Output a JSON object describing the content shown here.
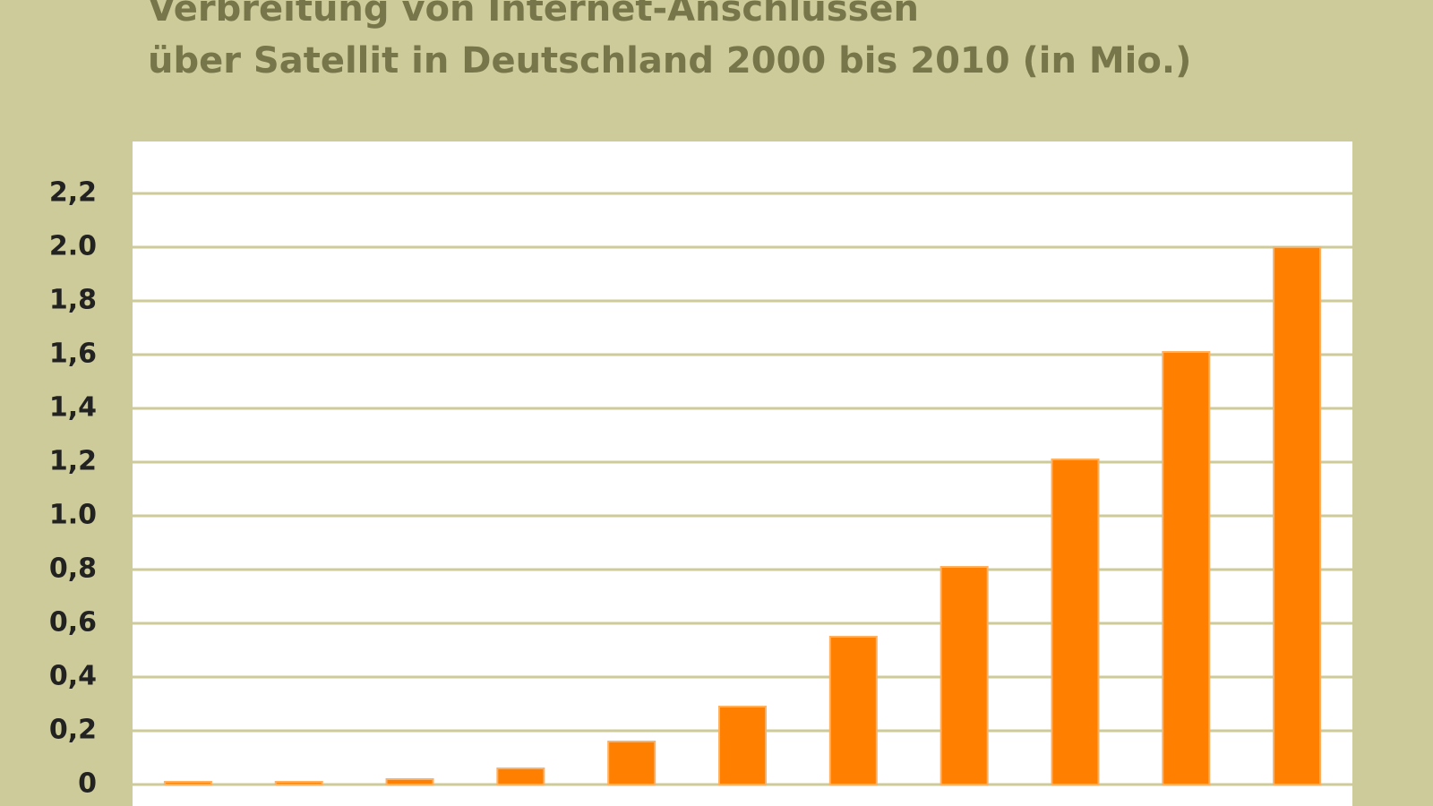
{
  "chart_data": {
    "type": "bar",
    "title_lines": [
      "Verbreitung von Internet-Anschlüssen",
      "über Satellit in Deutschland 2000 bis 2010 (in Mio.)"
    ],
    "categories": [
      null,
      null,
      null,
      null,
      null,
      null,
      null,
      null,
      null,
      null,
      null
    ],
    "values": [
      0.01,
      0.01,
      0.02,
      0.06,
      0.16,
      0.29,
      0.55,
      0.81,
      1.21,
      1.61,
      2.0
    ],
    "color": "#ff8000",
    "ylim": [
      0,
      2.4
    ],
    "yticks": [
      0,
      {
        "value": 0.2,
        "label": "0,2"
      },
      {
        "value": 0.4,
        "label": "0,4"
      },
      {
        "value": 0.6,
        "label": "0,6"
      },
      {
        "value": 0.8,
        "label": "0,8"
      },
      {
        "value": 1.0,
        "label": "1.0"
      },
      {
        "value": 1.2,
        "label": "1,2"
      },
      {
        "value": 1.4,
        "label": "1,4"
      },
      {
        "value": 1.6,
        "label": "1,6"
      },
      {
        "value": 1.8,
        "label": "1,8"
      },
      {
        "value": 2.0,
        "label": "2.0"
      },
      {
        "value": 2.2,
        "label": "2,2"
      }
    ],
    "grid": true
  }
}
